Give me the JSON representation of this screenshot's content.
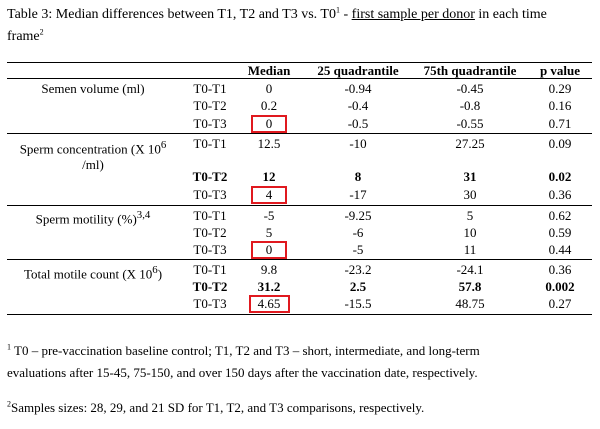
{
  "caption": {
    "prefix": "Table 3: Median differences between T1, T2 and T3 vs. T0",
    "sup1": "1",
    "sep": " - ",
    "underlined": "first sample per donor",
    "suffix": " in each time",
    "line2": "frame",
    "sup2": "2"
  },
  "headers": {
    "median": "Median",
    "q25": "25 quadrantile",
    "q75": "75th quadrantile",
    "pvalue": "p value"
  },
  "groups": [
    {
      "label": "Semen volume (ml)",
      "rows": [
        {
          "cmp": "T0-T1",
          "median": "0",
          "q25": "-0.94",
          "q75": "-0.45",
          "p": "0.29",
          "bold": false,
          "highlight": false
        },
        {
          "cmp": "T0-T2",
          "median": "0.2",
          "q25": "-0.4",
          "q75": "-0.8",
          "p": "0.16",
          "bold": false,
          "highlight": false
        },
        {
          "cmp": "T0-T3",
          "median": "0",
          "q25": "-0.5",
          "q75": "-0.55",
          "p": "0.71",
          "bold": false,
          "highlight": true
        }
      ]
    },
    {
      "label_pre": "Sperm concentration (X 10",
      "label_sup": "6",
      "label_post": "/ml)",
      "rows": [
        {
          "cmp": "T0-T1",
          "median": "12.5",
          "q25": "-10",
          "q75": "27.25",
          "p": "0.09",
          "bold": false,
          "highlight": false
        },
        {
          "cmp": "T0-T2",
          "median": "12",
          "q25": "8",
          "q75": "31",
          "p": "0.02",
          "bold": true,
          "highlight": false
        },
        {
          "cmp": "T0-T3",
          "median": "4",
          "q25": "-17",
          "q75": "30",
          "p": "0.36",
          "bold": false,
          "highlight": true
        }
      ]
    },
    {
      "label_pre": "Sperm motility (%)",
      "label_sup": "3,4",
      "rows": [
        {
          "cmp": "T0-T1",
          "median": "-5",
          "q25": "-9.25",
          "q75": "5",
          "p": "0.62",
          "bold": false,
          "highlight": false
        },
        {
          "cmp": "T0-T2",
          "median": "5",
          "q25": "-6",
          "q75": "10",
          "p": "0.59",
          "bold": false,
          "highlight": false
        },
        {
          "cmp": "T0-T3",
          "median": "0",
          "q25": "-5",
          "q75": "11",
          "p": "0.44",
          "bold": false,
          "highlight": true
        }
      ]
    },
    {
      "label_pre": "Total motile count  (X 10",
      "label_sup": "6",
      "label_post": ")",
      "rows": [
        {
          "cmp": "T0-T1",
          "median": "9.8",
          "q25": "-23.2",
          "q75": "-24.1",
          "p": "0.36",
          "bold": false,
          "highlight": false
        },
        {
          "cmp": "T0-T2",
          "median": "31.2",
          "q25": "2.5",
          "q75": "57.8",
          "p": "0.002",
          "bold": true,
          "highlight": false
        },
        {
          "cmp": "T0-T3",
          "median": "4.65",
          "q25": "-15.5",
          "q75": "48.75",
          "p": "0.27",
          "bold": false,
          "highlight": true
        }
      ]
    }
  ],
  "footnotes": {
    "n1_sup": "1",
    "n1_line1": " T0 – pre-vaccination baseline control; T1, T2 and T3 – short, intermediate, and long-term",
    "n1_line2": "evaluations after 15-45, 75-150, and over 150 days after the vaccination date, respectively.",
    "n2_sup": "2",
    "n2_text": "Samples sizes: 28, 29, and 21 SD for T1, T2, and T3 comparisons, respectively."
  },
  "colors": {
    "highlight": "#e0191f",
    "text": "#000000",
    "background": "#ffffff"
  }
}
